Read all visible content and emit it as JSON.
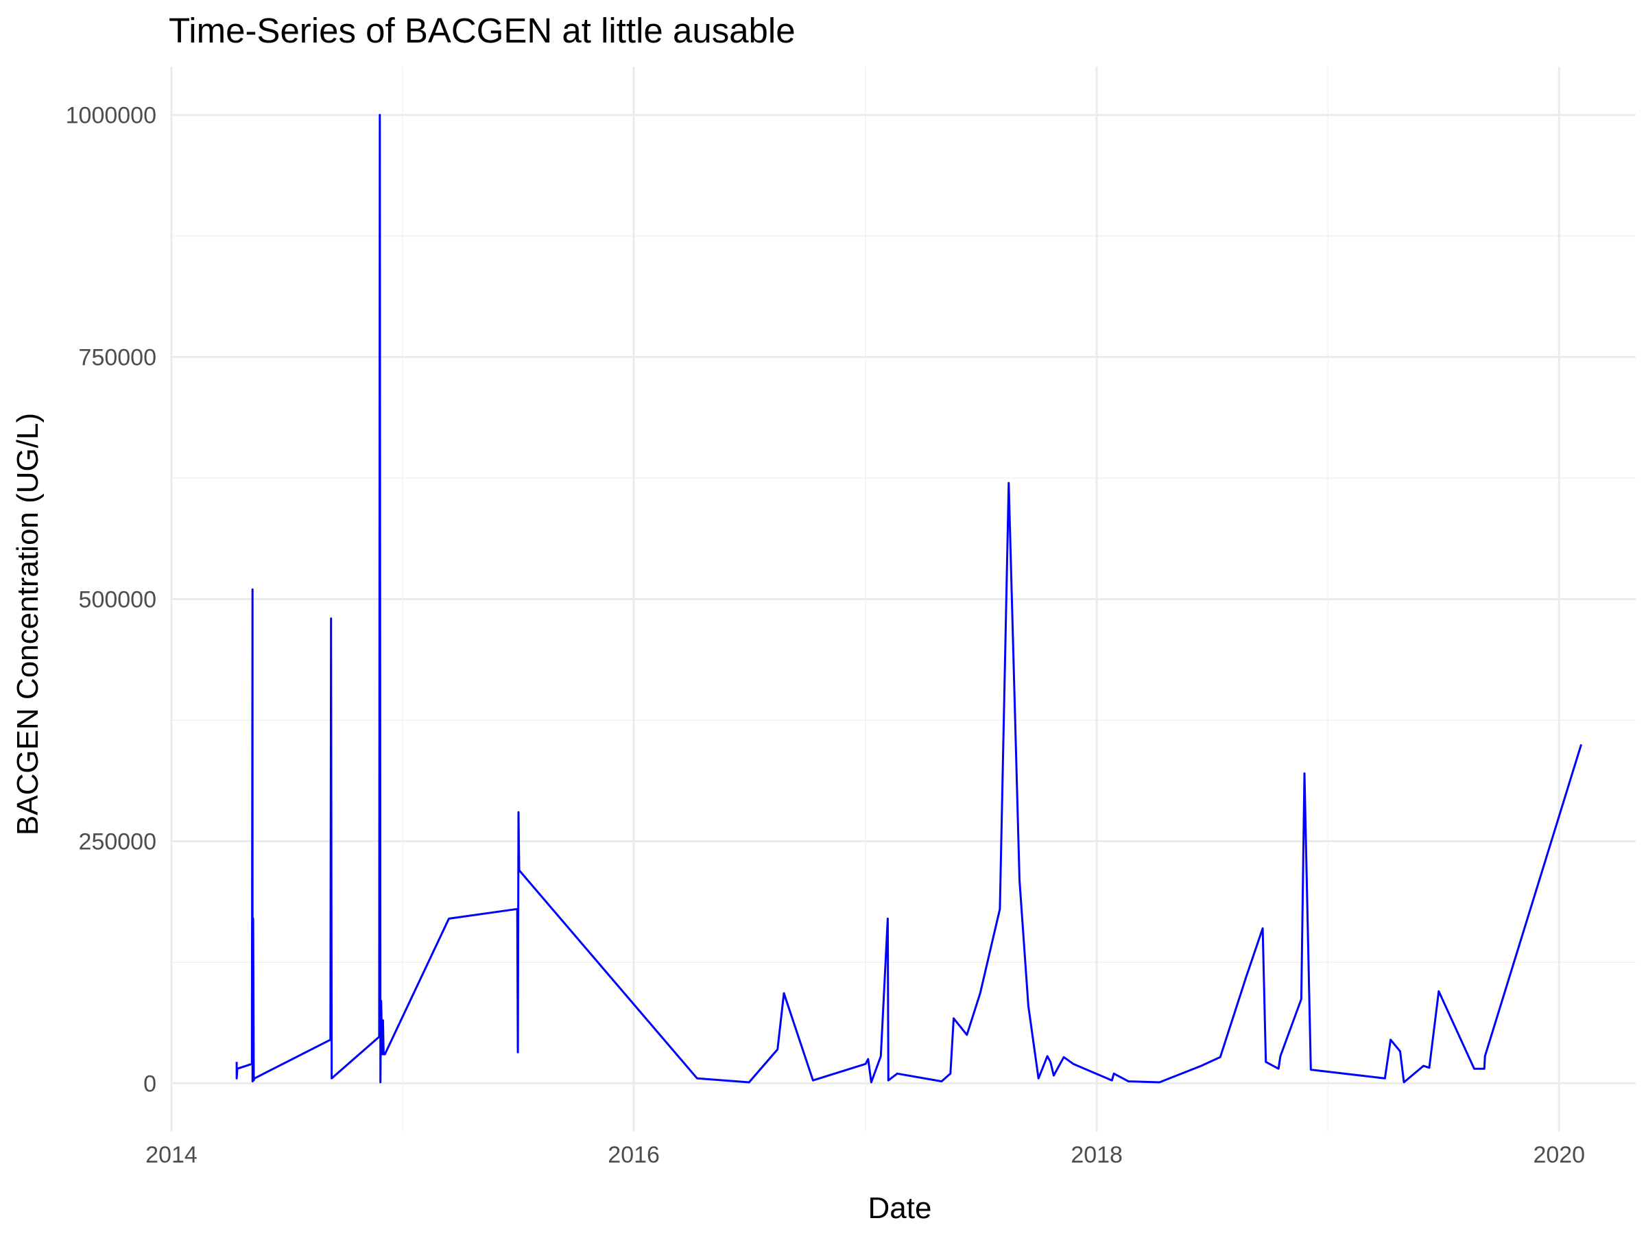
{
  "chart_data": {
    "type": "line",
    "title": "Time-Series of BACGEN at little ausable",
    "xlabel": "Date",
    "ylabel": "BACGEN Concentration (UG/L)",
    "x_ticks": [
      "2014",
      "2016",
      "2018",
      "2020"
    ],
    "y_ticks": [
      "0",
      "250000",
      "500000",
      "750000",
      "1000000"
    ],
    "xlim": [
      "2014-01-01",
      "2020-05-01"
    ],
    "ylim": [
      -50000,
      1050000
    ],
    "grid": true,
    "legend": "none",
    "line_color": "#0000ff",
    "series": [
      {
        "x": [
          "2014-04-14",
          "2014-04-14",
          "2014-04-15",
          "2014-05-08",
          "2014-05-09",
          "2014-05-09",
          "2014-05-10",
          "2014-05-11",
          "2014-05-12",
          "2014-09-09",
          "2014-09-10",
          "2014-09-11",
          "2014-11-25",
          "2014-11-26",
          "2014-11-27",
          "2014-11-28",
          "2014-11-30",
          "2014-12-01",
          "2014-12-02",
          "2014-12-04",
          "2015-03-15",
          "2015-07-01",
          "2015-07-02",
          "2015-07-03",
          "2015-07-04",
          "2016-04-10",
          "2016-07-01",
          "2016-08-15",
          "2016-08-25",
          "2016-10-10",
          "2017-01-01",
          "2017-01-05",
          "2017-01-10",
          "2017-01-25",
          "2017-02-05",
          "2017-02-06",
          "2017-02-20",
          "2017-05-01",
          "2017-05-15",
          "2017-05-20",
          "2017-06-10",
          "2017-07-01",
          "2017-08-01",
          "2017-08-15",
          "2017-09-01",
          "2017-09-15",
          "2017-10-01",
          "2017-10-15",
          "2017-10-20",
          "2017-10-25",
          "2017-11-10",
          "2017-11-25",
          "2018-01-25",
          "2018-01-28",
          "2018-02-20",
          "2018-04-10",
          "2018-06-15",
          "2018-07-15",
          "2018-08-25",
          "2018-09-20",
          "2018-09-25",
          "2018-10-15",
          "2018-10-18",
          "2018-11-20",
          "2018-11-25",
          "2018-12-05",
          "2019-04-01",
          "2019-04-10",
          "2019-04-25",
          "2019-05-01",
          "2019-06-01",
          "2019-06-10",
          "2019-06-25",
          "2019-08-20",
          "2019-09-05",
          "2019-09-06",
          "2020-02-05"
        ],
        "values": [
          22000,
          5000,
          15000,
          20000,
          510000,
          2000,
          170000,
          3000,
          5000,
          45000,
          480000,
          5000,
          48000,
          1000000,
          1000,
          85000,
          30000,
          65000,
          30000,
          30000,
          170000,
          180000,
          32000,
          280000,
          220000,
          5000,
          1000,
          35000,
          93000,
          3000,
          20000,
          25000,
          1000,
          28000,
          170000,
          3000,
          10000,
          2000,
          10000,
          67000,
          50000,
          93000,
          180000,
          620000,
          210000,
          80000,
          5000,
          28000,
          22000,
          8000,
          27000,
          20000,
          3000,
          10000,
          2000,
          1000,
          18000,
          27000,
          110000,
          160000,
          22000,
          15000,
          28000,
          87000,
          320000,
          14000,
          5000,
          45000,
          33000,
          1000,
          18000,
          16000,
          95000,
          15000,
          15000,
          28000,
          350000
        ]
      }
    ]
  }
}
